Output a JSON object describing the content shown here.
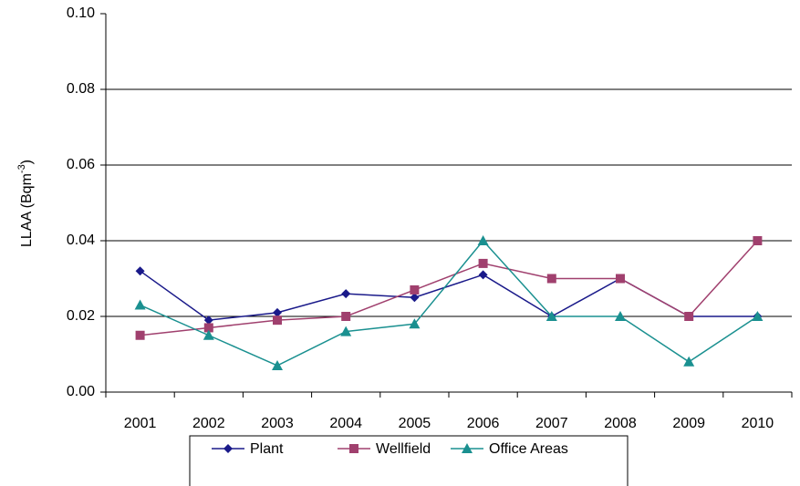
{
  "chart_data": {
    "type": "line",
    "y_label": {
      "text": "LLAA (Bqm",
      "superscript": "-3",
      "suffix": ")"
    },
    "categories": [
      "2001",
      "2002",
      "2003",
      "2004",
      "2005",
      "2006",
      "2007",
      "2008",
      "2009",
      "2010"
    ],
    "series": [
      {
        "name": "Plant",
        "color": "#1a1a8a",
        "marker": "diamond",
        "values": [
          0.032,
          0.019,
          0.021,
          0.026,
          0.025,
          0.031,
          0.02,
          0.03,
          0.02,
          0.02
        ]
      },
      {
        "name": "Wellfield",
        "color": "#a0406e",
        "marker": "square",
        "values": [
          0.015,
          0.017,
          0.019,
          0.02,
          0.027,
          0.034,
          0.03,
          0.03,
          0.02,
          0.04
        ]
      },
      {
        "name": "Office Areas",
        "color": "#1a9090",
        "marker": "triangle",
        "values": [
          0.023,
          0.015,
          0.007,
          0.016,
          0.018,
          0.04,
          0.02,
          0.02,
          0.008,
          0.02
        ]
      }
    ],
    "ylim": [
      0,
      0.1
    ],
    "yticks": [
      {
        "value": 0,
        "label": "0.00"
      },
      {
        "value": 0.02,
        "label": "0.02"
      },
      {
        "value": 0.04,
        "label": "0.04"
      },
      {
        "value": 0.06,
        "label": "0.06"
      },
      {
        "value": 0.08,
        "label": "0.08"
      },
      {
        "value": 0.1,
        "label": "0.10"
      }
    ],
    "grid": true,
    "legend": "bottom"
  }
}
